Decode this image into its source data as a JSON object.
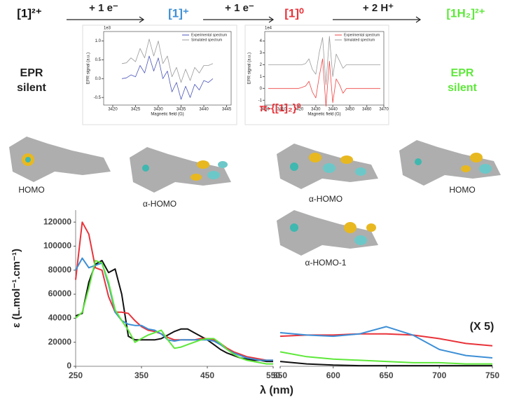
{
  "scheme": {
    "species": [
      "[1]²⁺",
      "[1]⁺",
      "[1]⁰",
      "[1H₂]²⁺"
    ],
    "species_colors": [
      "#111111",
      "#3d8fd6",
      "#e8333a",
      "#5ee83a"
    ],
    "steps": [
      "+ 1 e⁻",
      "+ 1 e⁻",
      "+ 2 H⁺"
    ],
    "epr_silent_left": [
      "EPR",
      "silent"
    ],
    "epr_silent_right": [
      "EPR",
      "silent"
    ],
    "epr_silent_right_color": "#5ee83a",
    "orbitals": [
      "HOMO",
      "α-HOMO",
      "α-HOMO",
      "α-HOMO-1",
      "HOMO"
    ]
  },
  "chart_data": [
    {
      "type": "line",
      "scale_label": "1e3",
      "xlabel": "Magnetic field (G)",
      "ylabel": "EPR signal (a.u.)",
      "x": [
        3422,
        3423,
        3424,
        3425,
        3426,
        3427,
        3428,
        3429,
        3430,
        3431,
        3432,
        3433,
        3434,
        3435,
        3436,
        3437,
        3438,
        3439,
        3440,
        3441,
        3442
      ],
      "series": [
        {
          "name": "Experimental spectrum",
          "color": "#4a55b8",
          "values": [
            0.0,
            0.02,
            0.1,
            0.05,
            0.35,
            0.15,
            0.6,
            0.2,
            0.55,
            0.0,
            0.2,
            -0.35,
            -0.1,
            -0.55,
            -0.2,
            -0.5,
            -0.15,
            -0.3,
            -0.05,
            -0.1,
            0.0
          ]
        },
        {
          "name": "Simulated spectrum",
          "color": "#9a9a9a",
          "values": [
            0.4,
            0.42,
            0.55,
            0.45,
            0.8,
            0.55,
            1.05,
            0.6,
            1.0,
            0.4,
            0.6,
            0.05,
            0.3,
            -0.1,
            0.25,
            -0.05,
            0.3,
            0.15,
            0.35,
            0.35,
            0.4
          ]
        }
      ],
      "xlim": [
        3418,
        3446
      ],
      "ylim": [
        -0.7,
        1.25
      ],
      "xticks": [
        3420,
        3425,
        3430,
        3435,
        3440,
        3445
      ],
      "yticks": [
        -0.5,
        {
          "value": 0,
          "label": "0.0"
        },
        0.5,
        {
          "value": 1,
          "label": "1.0"
        }
      ]
    },
    {
      "type": "line",
      "scale_label": "1e4",
      "xlabel": "Magnetic field (G)",
      "ylabel": "EPR signal (a.u.)",
      "annotation": "π-{[1]₂}⁰",
      "annotation_color": "#e8333a",
      "x": [
        3402,
        3420,
        3422,
        3424,
        3426,
        3428,
        3430,
        3432,
        3434,
        3436,
        3438,
        3440,
        3442,
        3444,
        3446,
        3448,
        3450,
        3468
      ],
      "series": [
        {
          "name": "Experimental spectrum",
          "color": "#ee4444",
          "values": [
            0,
            0,
            0.1,
            0.2,
            0.6,
            -0.3,
            -0.8,
            1.0,
            2.5,
            -1.5,
            2.3,
            -1.2,
            0.8,
            0.3,
            -0.4,
            0,
            0,
            0
          ]
        },
        {
          "name": "Simulated spectrum",
          "color": "#9a9a9a",
          "values": [
            2,
            2,
            2,
            2.1,
            2.5,
            1.6,
            1.2,
            3.0,
            4.3,
            0.3,
            4.4,
            1.0,
            2.9,
            2.3,
            1.7,
            2.0,
            2.0,
            2
          ]
        }
      ],
      "xlim": [
        3400,
        3470
      ],
      "ylim": [
        -1.4,
        4.8
      ],
      "xticks": [
        3400,
        3410,
        3420,
        3430,
        3440,
        3450,
        3460,
        3470
      ],
      "yticks": [
        -1,
        0,
        1,
        2,
        3,
        4
      ]
    },
    {
      "type": "line",
      "xlabel": "λ (nm)",
      "ylabel": "ε (L.mol⁻¹.cm⁻¹)",
      "x": [
        250,
        260,
        270,
        280,
        290,
        300,
        310,
        320,
        330,
        340,
        350,
        360,
        370,
        380,
        390,
        400,
        410,
        420,
        430,
        440,
        450,
        460,
        470,
        480,
        490,
        500,
        510,
        520,
        530,
        540,
        550
      ],
      "series": [
        {
          "color": "#111111",
          "values": [
            42000,
            44000,
            70000,
            85000,
            88000,
            78000,
            81000,
            60000,
            25000,
            22000,
            22000,
            22000,
            22000,
            23000,
            26000,
            29000,
            31000,
            31000,
            28000,
            25000,
            22000,
            18000,
            14000,
            11000,
            9000,
            7000,
            6000,
            5000,
            5000,
            4000,
            4000
          ]
        },
        {
          "color": "#e8333a",
          "values": [
            72000,
            120000,
            110000,
            82000,
            80000,
            58000,
            45000,
            45000,
            44000,
            38000,
            33000,
            30000,
            29000,
            27000,
            24000,
            22000,
            22000,
            22000,
            22000,
            23000,
            23000,
            22000,
            19000,
            15000,
            12000,
            10000,
            8000,
            7000,
            6000,
            5000,
            5000
          ]
        },
        {
          "color": "#3d8fd6",
          "values": [
            80000,
            90000,
            82000,
            84000,
            86000,
            68000,
            45000,
            38000,
            35000,
            34000,
            34000,
            31000,
            30000,
            27000,
            22000,
            21000,
            22000,
            22000,
            22000,
            22000,
            22000,
            21000,
            18000,
            14000,
            11000,
            9000,
            7000,
            6000,
            5000,
            5000,
            5000
          ]
        },
        {
          "color": "#5ee83a",
          "values": [
            40000,
            45000,
            65000,
            88000,
            86000,
            70000,
            47000,
            38000,
            30000,
            20000,
            23000,
            26000,
            28000,
            30000,
            22000,
            15000,
            16000,
            18000,
            20000,
            22000,
            23000,
            23000,
            19000,
            14000,
            10000,
            7000,
            5000,
            4000,
            3000,
            2000,
            2000
          ]
        }
      ],
      "xlim": [
        250,
        550
      ],
      "ylim": [
        0,
        130000
      ],
      "xticks": [
        250,
        350,
        450,
        550
      ],
      "yticks": [
        0,
        20000,
        40000,
        60000,
        80000,
        100000,
        120000
      ]
    },
    {
      "type": "line",
      "annotation": "(X 5)",
      "annotation_color": "#222222",
      "x": [
        550,
        575,
        600,
        625,
        650,
        675,
        700,
        725,
        750
      ],
      "series": [
        {
          "color": "#111111",
          "values": [
            4000,
            2000,
            1000,
            500,
            500,
            500,
            500,
            500,
            500
          ]
        },
        {
          "color": "#e8333a",
          "values": [
            25000,
            26000,
            26000,
            27000,
            27000,
            26000,
            23000,
            19000,
            17000
          ]
        },
        {
          "color": "#3d8fd6",
          "values": [
            28000,
            26000,
            25000,
            27000,
            33000,
            26000,
            14000,
            9000,
            7000
          ]
        },
        {
          "color": "#5ee83a",
          "values": [
            12000,
            8000,
            6000,
            5000,
            4000,
            3000,
            3000,
            2000,
            2000
          ]
        }
      ],
      "xlim": [
        550,
        750
      ],
      "ylim": [
        0,
        130000
      ],
      "xticks": [
        550,
        600,
        650,
        700,
        750
      ]
    }
  ]
}
